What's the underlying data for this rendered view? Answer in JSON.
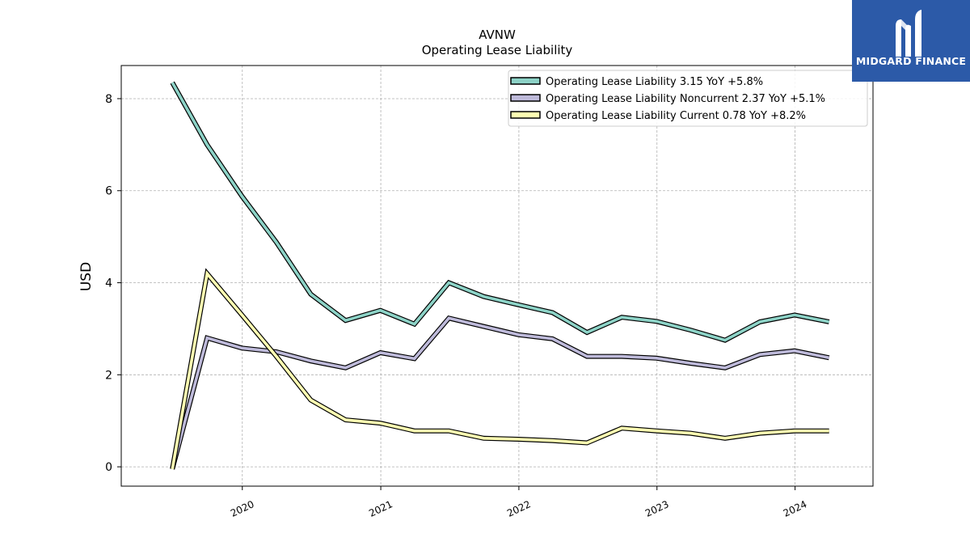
{
  "brand": {
    "name": "MIDGARD FINANCE",
    "bg_color": "#2c5aa8",
    "icon": "midgard-m-logo-icon"
  },
  "chart_data": {
    "type": "line",
    "title": "AVNW",
    "subtitle": "Operating Lease Liability",
    "xlabel": "",
    "ylabel": "USD",
    "x": [
      "2019-06-30",
      "2019-09-30",
      "2019-12-31",
      "2020-03-31",
      "2020-06-30",
      "2020-09-30",
      "2020-12-31",
      "2021-03-31",
      "2021-06-30",
      "2021-09-30",
      "2021-12-31",
      "2022-03-31",
      "2022-06-30",
      "2022-09-30",
      "2022-12-31",
      "2023-03-31",
      "2023-06-30",
      "2023-09-30",
      "2023-12-31",
      "2024-03-31"
    ],
    "x_ticks": [
      "2020",
      "2021",
      "2022",
      "2023",
      "2024"
    ],
    "y_ticks": [
      "0",
      "2",
      "4",
      "6",
      "8"
    ],
    "ylim": [
      -0.42,
      8.72
    ],
    "xlim": [
      "2019-02-15",
      "2024-07-25"
    ],
    "grid": true,
    "legend_position": "top-right",
    "series": [
      {
        "name": "Operating Lease Liability",
        "legend": "Operating Lease Liability  3.15 YoY +5.8%",
        "color": "#8dd3c7",
        "values": [
          8.35,
          7.0,
          5.88,
          4.88,
          3.75,
          3.18,
          3.4,
          3.1,
          4.0,
          3.7,
          3.52,
          3.35,
          2.92,
          3.25,
          3.16,
          2.97,
          2.75,
          3.15,
          3.3,
          3.15
        ]
      },
      {
        "name": "Operating Lease Liability Noncurrent",
        "legend": "Operating Lease Liability Noncurrent  2.37 YoY +5.1%",
        "color": "#bebada",
        "values": [
          -0.05,
          2.8,
          2.58,
          2.5,
          2.3,
          2.15,
          2.48,
          2.35,
          3.23,
          3.05,
          2.87,
          2.78,
          2.4,
          2.4,
          2.36,
          2.25,
          2.15,
          2.44,
          2.52,
          2.37
        ]
      },
      {
        "name": "Operating Lease Liability Current",
        "legend": "Operating Lease Liability Current  0.78 YoY +8.2%",
        "color": "#ffffb3",
        "values": [
          -0.05,
          4.2,
          3.3,
          2.4,
          1.45,
          1.02,
          0.95,
          0.78,
          0.78,
          0.62,
          0.6,
          0.57,
          0.52,
          0.84,
          0.78,
          0.73,
          0.62,
          0.73,
          0.78,
          0.78
        ]
      }
    ]
  }
}
